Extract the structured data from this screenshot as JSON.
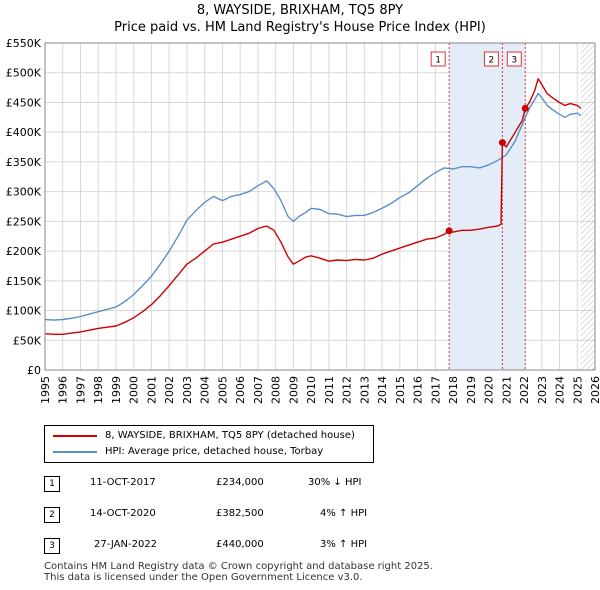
{
  "title": "8, WAYSIDE, BRIXHAM, TQ5 8PY",
  "subtitle": "Price paid vs. HM Land Registry's House Price Index (HPI)",
  "chart_data": {
    "type": "line",
    "x_range": [
      1995,
      2026
    ],
    "y_range": [
      0,
      550000
    ],
    "x_ticks": [
      1995,
      1996,
      1997,
      1998,
      1999,
      2000,
      2001,
      2002,
      2003,
      2004,
      2005,
      2006,
      2007,
      2008,
      2009,
      2010,
      2011,
      2012,
      2013,
      2014,
      2015,
      2016,
      2017,
      2018,
      2019,
      2020,
      2021,
      2022,
      2023,
      2024,
      2025,
      2026
    ],
    "y_ticks": [
      {
        "value": 0,
        "label": "£0"
      },
      {
        "value": 50000,
        "label": "£50K"
      },
      {
        "value": 100000,
        "label": "£100K"
      },
      {
        "value": 150000,
        "label": "£150K"
      },
      {
        "value": 200000,
        "label": "£200K"
      },
      {
        "value": 250000,
        "label": "£250K"
      },
      {
        "value": 300000,
        "label": "£300K"
      },
      {
        "value": 350000,
        "label": "£350K"
      },
      {
        "value": 400000,
        "label": "£400K"
      },
      {
        "value": 450000,
        "label": "£450K"
      },
      {
        "value": 500000,
        "label": "£500K"
      },
      {
        "value": 550000,
        "label": "£550K"
      }
    ],
    "grid": true,
    "future_hatch_from": 2025.2,
    "series": [
      {
        "name": "8, WAYSIDE, BRIXHAM, TQ5 8PY (detached house)",
        "color": "#cc0000",
        "x": [
          1995.0,
          1995.5,
          1996.0,
          1996.5,
          1997.0,
          1997.5,
          1998.0,
          1998.5,
          1999.0,
          1999.5,
          2000.0,
          2000.5,
          2001.0,
          2001.5,
          2002.0,
          2002.5,
          2003.0,
          2003.5,
          2004.0,
          2004.5,
          2005.0,
          2005.5,
          2006.0,
          2006.5,
          2007.0,
          2007.5,
          2007.9,
          2008.3,
          2008.7,
          2009.0,
          2009.3,
          2009.7,
          2010.0,
          2010.5,
          2011.0,
          2011.5,
          2012.0,
          2012.5,
          2013.0,
          2013.5,
          2014.0,
          2014.5,
          2015.0,
          2015.5,
          2016.0,
          2016.5,
          2017.0,
          2017.5,
          2017.78,
          2018.0,
          2018.5,
          2019.0,
          2019.5,
          2020.0,
          2020.5,
          2020.7,
          2020.78,
          2021.0,
          2021.5,
          2021.9,
          2022.07,
          2022.3,
          2022.6,
          2022.8,
          2023.0,
          2023.3,
          2023.6,
          2024.0,
          2024.3,
          2024.6,
          2025.0,
          2025.2
        ],
        "values": [
          61000,
          60000,
          60000,
          62000,
          64000,
          67000,
          70000,
          72000,
          74000,
          80000,
          88000,
          98000,
          110000,
          125000,
          142000,
          160000,
          178000,
          188000,
          200000,
          212000,
          215000,
          220000,
          225000,
          230000,
          238000,
          242000,
          235000,
          215000,
          190000,
          178000,
          183000,
          190000,
          192000,
          188000,
          183000,
          185000,
          184000,
          186000,
          185000,
          188000,
          195000,
          200000,
          205000,
          210000,
          215000,
          220000,
          222000,
          228000,
          234000,
          232000,
          235000,
          235000,
          237000,
          240000,
          242000,
          245000,
          382500,
          375000,
          400000,
          420000,
          440000,
          450000,
          470000,
          490000,
          480000,
          465000,
          458000,
          450000,
          445000,
          448000,
          445000,
          440000
        ]
      },
      {
        "name": "HPI: Average price, detached house, Torbay",
        "color": "#5b8fc9",
        "x": [
          1995.0,
          1995.5,
          1996.0,
          1996.5,
          1997.0,
          1997.5,
          1998.0,
          1998.5,
          1999.0,
          1999.5,
          2000.0,
          2000.5,
          2001.0,
          2001.5,
          2002.0,
          2002.5,
          2003.0,
          2003.5,
          2004.0,
          2004.5,
          2005.0,
          2005.5,
          2006.0,
          2006.5,
          2007.0,
          2007.5,
          2007.9,
          2008.3,
          2008.7,
          2009.0,
          2009.3,
          2009.7,
          2010.0,
          2010.5,
          2011.0,
          2011.5,
          2012.0,
          2012.5,
          2013.0,
          2013.5,
          2014.0,
          2014.5,
          2015.0,
          2015.5,
          2016.0,
          2016.5,
          2017.0,
          2017.5,
          2018.0,
          2018.5,
          2019.0,
          2019.5,
          2020.0,
          2020.5,
          2021.0,
          2021.5,
          2022.0,
          2022.3,
          2022.6,
          2022.8,
          2023.0,
          2023.3,
          2023.6,
          2024.0,
          2024.3,
          2024.6,
          2025.0,
          2025.2
        ],
        "values": [
          85000,
          84000,
          85000,
          87000,
          90000,
          94000,
          98000,
          102000,
          106000,
          115000,
          127000,
          142000,
          158000,
          178000,
          200000,
          225000,
          252000,
          268000,
          282000,
          292000,
          285000,
          292000,
          295000,
          300000,
          310000,
          318000,
          305000,
          285000,
          258000,
          250000,
          258000,
          265000,
          272000,
          270000,
          263000,
          262000,
          258000,
          260000,
          260000,
          265000,
          272000,
          280000,
          290000,
          298000,
          310000,
          322000,
          332000,
          340000,
          338000,
          342000,
          342000,
          340000,
          345000,
          352000,
          362000,
          385000,
          420000,
          440000,
          455000,
          465000,
          458000,
          445000,
          438000,
          430000,
          425000,
          430000,
          432000,
          428000
        ]
      }
    ],
    "sales": [
      {
        "label": "1",
        "x": 2017.78,
        "value": 234000,
        "date": "11-OCT-2017",
        "price": "£234,000",
        "hpi": "30% ↓ HPI"
      },
      {
        "label": "2",
        "x": 2020.78,
        "value": 382500,
        "date": "14-OCT-2020",
        "price": "£382,500",
        "hpi": "4% ↑ HPI"
      },
      {
        "label": "3",
        "x": 2022.07,
        "value": 440000,
        "date": "27-JAN-2022",
        "price": "£440,000",
        "hpi": "3% ↑ HPI"
      }
    ]
  },
  "footer": {
    "line1": "Contains HM Land Registry data © Crown copyright and database right 2025.",
    "line2": "This data is licensed under the Open Government Licence v3.0."
  }
}
